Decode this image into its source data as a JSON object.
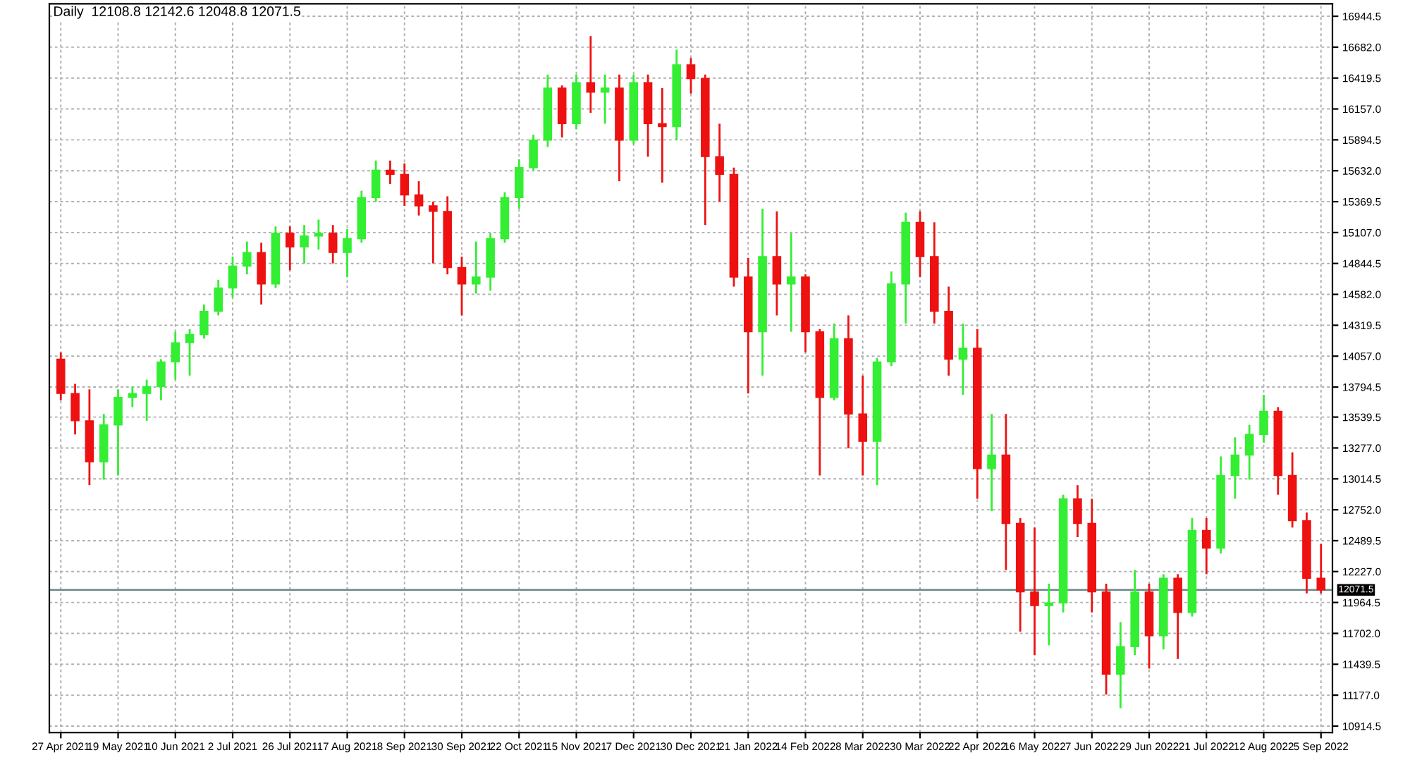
{
  "chart_data": {
    "type": "candlestick",
    "title": "Daily  12108.8 12142.6 12048.8 12071.5",
    "categories": [
      "27 Apr 2021",
      null,
      null,
      null,
      "19 May 2021",
      null,
      null,
      null,
      "10 Jun 2021",
      null,
      null,
      null,
      "2 Jul 2021",
      null,
      null,
      null,
      "26 Jul 2021",
      null,
      null,
      null,
      "17 Aug 2021",
      null,
      null,
      null,
      "8 Sep 2021",
      null,
      null,
      null,
      "30 Sep 2021",
      null,
      null,
      null,
      "22 Oct 2021",
      null,
      null,
      null,
      "15 Nov 2021",
      null,
      null,
      null,
      "7 Dec 2021",
      null,
      null,
      null,
      "30 Dec 2021",
      null,
      null,
      null,
      "21 Jan 2022",
      null,
      null,
      null,
      "14 Feb 2022",
      null,
      null,
      null,
      "8 Mar 2022",
      null,
      null,
      null,
      "30 Mar 2022",
      null,
      null,
      null,
      "22 Apr 2022",
      null,
      null,
      null,
      "16 May 2022",
      null,
      null,
      null,
      "7 Jun 2022",
      null,
      null,
      null,
      "29 Jun 2022",
      null,
      null,
      null,
      "21 Jul 2022",
      null,
      null,
      null,
      "12 Aug 2022",
      null,
      null,
      null,
      "5 Sep 2022"
    ],
    "ohlc": [
      [
        14031,
        14089,
        13682,
        13740
      ],
      [
        13740,
        13822,
        13392,
        13508
      ],
      [
        13508,
        13775,
        12961,
        13159
      ],
      [
        13159,
        13566,
        13008,
        13473
      ],
      [
        13473,
        13775,
        13043,
        13706
      ],
      [
        13706,
        13799,
        13624,
        13740
      ],
      [
        13740,
        13857,
        13508,
        13799
      ],
      [
        13799,
        14031,
        13682,
        14008
      ],
      [
        14008,
        14264,
        13857,
        14171
      ],
      [
        14171,
        14287,
        13892,
        14241
      ],
      [
        14241,
        14496,
        14206,
        14438
      ],
      [
        14438,
        14706,
        14403,
        14636
      ],
      [
        14636,
        14903,
        14555,
        14822
      ],
      [
        14822,
        15031,
        14752,
        14938
      ],
      [
        14938,
        15020,
        14496,
        14671
      ],
      [
        14671,
        15159,
        14636,
        15101
      ],
      [
        15101,
        15159,
        14787,
        14985
      ],
      [
        14985,
        15171,
        14845,
        15078
      ],
      [
        15078,
        15217,
        14962,
        15101
      ],
      [
        15101,
        15171,
        14845,
        14938
      ],
      [
        14938,
        15136,
        14729,
        15055
      ],
      [
        15055,
        15462,
        15020,
        15404
      ],
      [
        15404,
        15718,
        15369,
        15636
      ],
      [
        15636,
        15718,
        15520,
        15601
      ],
      [
        15601,
        15694,
        15334,
        15427
      ],
      [
        15427,
        15543,
        15252,
        15334
      ],
      [
        15334,
        15369,
        14845,
        15287
      ],
      [
        15287,
        15415,
        14752,
        14810
      ],
      [
        14810,
        14903,
        14403,
        14671
      ],
      [
        14671,
        15031,
        14589,
        14729
      ],
      [
        14729,
        15101,
        14613,
        15055
      ],
      [
        15055,
        15450,
        15020,
        15404
      ],
      [
        15404,
        15729,
        15310,
        15659
      ],
      [
        15659,
        15939,
        15636,
        15892
      ],
      [
        15892,
        16450,
        15834,
        16334
      ],
      [
        16334,
        16357,
        15915,
        16032
      ],
      [
        16032,
        16450,
        15985,
        16380
      ],
      [
        16380,
        16776,
        16125,
        16299
      ],
      [
        16299,
        16450,
        16032,
        16334
      ],
      [
        16334,
        16450,
        15543,
        15892
      ],
      [
        15892,
        16450,
        15857,
        16380
      ],
      [
        16380,
        16450,
        15752,
        16032
      ],
      [
        16032,
        16334,
        15531,
        16008
      ],
      [
        16008,
        16660,
        15892,
        16532
      ],
      [
        16532,
        16590,
        16287,
        16415
      ],
      [
        16415,
        16450,
        15171,
        15752
      ],
      [
        15752,
        16032,
        15369,
        15601
      ],
      [
        15601,
        15659,
        14648,
        14729
      ],
      [
        14729,
        14892,
        13740,
        14264
      ],
      [
        14264,
        15310,
        13892,
        14903
      ],
      [
        14903,
        15287,
        14403,
        14671
      ],
      [
        14671,
        15101,
        14264,
        14729
      ],
      [
        14729,
        14752,
        14089,
        14264
      ],
      [
        14264,
        14287,
        13043,
        13706
      ],
      [
        13706,
        14334,
        13682,
        14206
      ],
      [
        14206,
        14403,
        13275,
        13566
      ],
      [
        13566,
        13892,
        13043,
        13333
      ],
      [
        13333,
        14043,
        12961,
        14008
      ],
      [
        14008,
        14776,
        13973,
        14671
      ],
      [
        14671,
        15276,
        14334,
        15194
      ],
      [
        15194,
        15287,
        14729,
        14903
      ],
      [
        14903,
        15194,
        14334,
        14438
      ],
      [
        14438,
        14648,
        13892,
        14031
      ],
      [
        14031,
        14334,
        13729,
        14124
      ],
      [
        14124,
        14287,
        12845,
        13101
      ],
      [
        13101,
        13566,
        12740,
        13217
      ],
      [
        13217,
        13566,
        12240,
        12636
      ],
      [
        12636,
        12682,
        11717,
        12054
      ],
      [
        12054,
        12601,
        11519,
        11938
      ],
      [
        11938,
        12124,
        11601,
        11961
      ],
      [
        11961,
        12880,
        11880,
        12845
      ],
      [
        12845,
        12961,
        12519,
        12636
      ],
      [
        12636,
        12845,
        11880,
        12054
      ],
      [
        12054,
        12124,
        11182,
        11356
      ],
      [
        11356,
        11798,
        11066,
        11589
      ],
      [
        11589,
        12240,
        11519,
        12054
      ],
      [
        12054,
        12124,
        11403,
        11682
      ],
      [
        11682,
        12205,
        11566,
        12170
      ],
      [
        12170,
        12205,
        11484,
        11880
      ],
      [
        11880,
        12682,
        11845,
        12577
      ],
      [
        12577,
        12682,
        12205,
        12426
      ],
      [
        12426,
        13205,
        12380,
        13043
      ],
      [
        13043,
        13368,
        12845,
        13217
      ],
      [
        13217,
        13473,
        13008,
        13392
      ],
      [
        13392,
        13729,
        13322,
        13589
      ],
      [
        13589,
        13624,
        12880,
        13043
      ],
      [
        13043,
        13240,
        12601,
        12659
      ],
      [
        12659,
        12729,
        12042,
        12170
      ],
      [
        12170,
        12461,
        12042,
        12071.5
      ]
    ],
    "colors": [
      "#ee1111",
      "#ee1111",
      "#ee1111",
      "#33ee33",
      "#33ee33",
      "#33ee33",
      "#33ee33",
      "#33ee33",
      "#33ee33",
      "#33ee33",
      "#33ee33",
      "#33ee33",
      "#33ee33",
      "#33ee33",
      "#ee1111",
      "#33ee33",
      "#ee1111",
      "#33ee33",
      "#33ee33",
      "#ee1111",
      "#33ee33",
      "#33ee33",
      "#33ee33",
      "#ee1111",
      "#ee1111",
      "#ee1111",
      "#ee1111",
      "#ee1111",
      "#ee1111",
      "#33ee33",
      "#33ee33",
      "#33ee33",
      "#33ee33",
      "#33ee33",
      "#33ee33",
      "#ee1111",
      "#33ee33",
      "#ee1111",
      "#33ee33",
      "#ee1111",
      "#33ee33",
      "#ee1111",
      "#ee1111",
      "#33ee33",
      "#ee1111",
      "#ee1111",
      "#ee1111",
      "#ee1111",
      "#ee1111",
      "#33ee33",
      "#ee1111",
      "#33ee33",
      "#ee1111",
      "#ee1111",
      "#33ee33",
      "#ee1111",
      "#ee1111",
      "#33ee33",
      "#33ee33",
      "#33ee33",
      "#ee1111",
      "#ee1111",
      "#ee1111",
      "#33ee33",
      "#ee1111",
      "#33ee33",
      "#ee1111",
      "#ee1111",
      "#ee1111",
      "#33ee33",
      "#33ee33",
      "#ee1111",
      "#ee1111",
      "#ee1111",
      "#33ee33",
      "#33ee33",
      "#ee1111",
      "#33ee33",
      "#ee1111",
      "#33ee33",
      "#ee1111",
      "#33ee33",
      "#33ee33",
      "#33ee33",
      "#33ee33",
      "#ee1111",
      "#ee1111",
      "#ee1111",
      "#ee1111"
    ],
    "ylim": [
      10860,
      17050
    ],
    "yticks": [
      {
        "value": 16944.5,
        "label": "16944.5"
      },
      {
        "value": 16682,
        "label": "16682.0"
      },
      {
        "value": 16419.5,
        "label": "16419.5"
      },
      {
        "value": 16157,
        "label": "16157.0"
      },
      {
        "value": 15894.5,
        "label": "15894.5"
      },
      {
        "value": 15632,
        "label": "15632.0"
      },
      {
        "value": 15369.5,
        "label": "15369.5"
      },
      {
        "value": 15107,
        "label": "15107.0"
      },
      {
        "value": 14844.5,
        "label": "14844.5"
      },
      {
        "value": 14582,
        "label": "14582.0"
      },
      {
        "value": 14319.5,
        "label": "14319.5"
      },
      {
        "value": 14057,
        "label": "14057.0"
      },
      {
        "value": 13794.5,
        "label": "13794.5"
      },
      {
        "value": 13539.5,
        "label": "13539.5"
      },
      {
        "value": 13277,
        "label": "13277.0"
      },
      {
        "value": 13014.5,
        "label": "13014.5"
      },
      {
        "value": 12752,
        "label": "12752.0"
      },
      {
        "value": 12489.5,
        "label": "12489.5"
      },
      {
        "value": 12227,
        "label": "12227.0"
      },
      {
        "value": 11964.5,
        "label": "11964.5"
      },
      {
        "value": 11702,
        "label": "11702.0"
      },
      {
        "value": 11439.5,
        "label": "11439.5"
      },
      {
        "value": 11177,
        "label": "11177.0"
      },
      {
        "value": 10914.5,
        "label": "10914.5"
      }
    ],
    "ref_lines": [
      {
        "axis": "y",
        "value": 12071.5,
        "label": "12071.5",
        "color": "#6a8a8a"
      }
    ],
    "grid": true
  }
}
